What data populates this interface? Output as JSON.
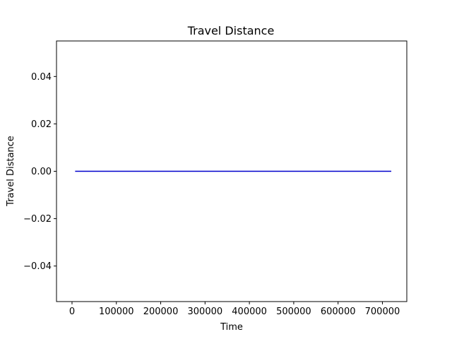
{
  "chart_data": {
    "type": "line",
    "title": "Travel Distance",
    "xlabel": "Time",
    "ylabel": "Travel Distance",
    "xlim": [
      -35000,
      755000
    ],
    "ylim": [
      -0.055,
      0.055
    ],
    "x_ticks": [
      0,
      100000,
      200000,
      300000,
      400000,
      500000,
      600000,
      700000
    ],
    "x_tick_labels": [
      "0",
      "100000",
      "200000",
      "300000",
      "400000",
      "500000",
      "600000",
      "700000"
    ],
    "y_ticks": [
      -0.04,
      -0.02,
      0.0,
      0.02,
      0.04
    ],
    "y_tick_labels": [
      "−0.04",
      "−0.02",
      "0.00",
      "0.02",
      "0.04"
    ],
    "grid": false,
    "series": [
      {
        "color": "#0000cc",
        "x": [
          7000,
          720000
        ],
        "y": [
          0,
          0
        ]
      }
    ]
  }
}
